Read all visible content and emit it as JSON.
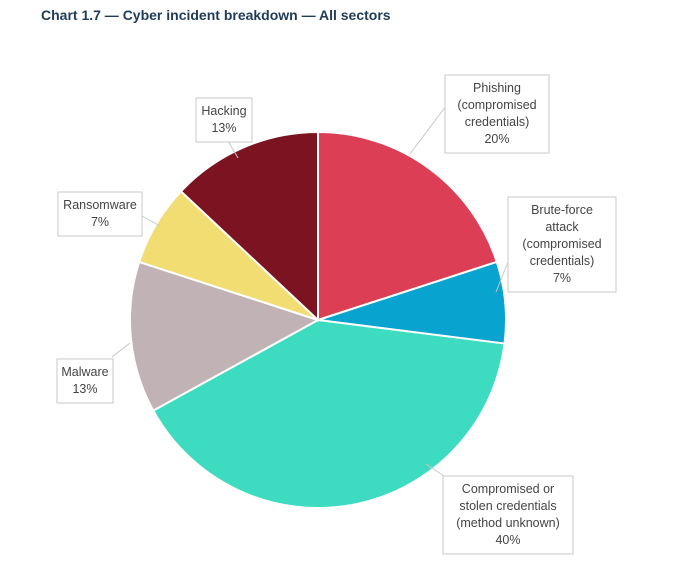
{
  "title": "Chart 1.7 — Cyber incident breakdown — All sectors",
  "chart_data": {
    "type": "pie",
    "title": "Chart 1.7 — Cyber incident breakdown — All sectors",
    "start_angle_deg": 0,
    "direction": "clockwise",
    "slices": [
      {
        "label": "Phishing (compromised credentials)",
        "label_lines": [
          "Phishing",
          "(compromised",
          "credentials)"
        ],
        "value": 20,
        "value_text": "20%",
        "color": "#dc3e56"
      },
      {
        "label": "Brute-force attack (compromised credentials)",
        "label_lines": [
          "Brute-force",
          "attack",
          "(compromised",
          "credentials)"
        ],
        "value": 7,
        "value_text": "7%",
        "color": "#08a3cf"
      },
      {
        "label": "Compromised or stolen credentials (method unknown)",
        "label_lines": [
          "Compromised or",
          "stolen credentials",
          "(method unknown)"
        ],
        "value": 40,
        "value_text": "40%",
        "color": "#3ddbc0"
      },
      {
        "label": "Malware",
        "label_lines": [
          "Malware"
        ],
        "value": 13,
        "value_text": "13%",
        "color": "#c1b2b5"
      },
      {
        "label": "Ransomware",
        "label_lines": [
          "Ransomware"
        ],
        "value": 7,
        "value_text": "7%",
        "color": "#f1dd72"
      },
      {
        "label": "Hacking",
        "label_lines": [
          "Hacking"
        ],
        "value": 13,
        "value_text": "13%",
        "color": "#7b1320"
      }
    ]
  }
}
